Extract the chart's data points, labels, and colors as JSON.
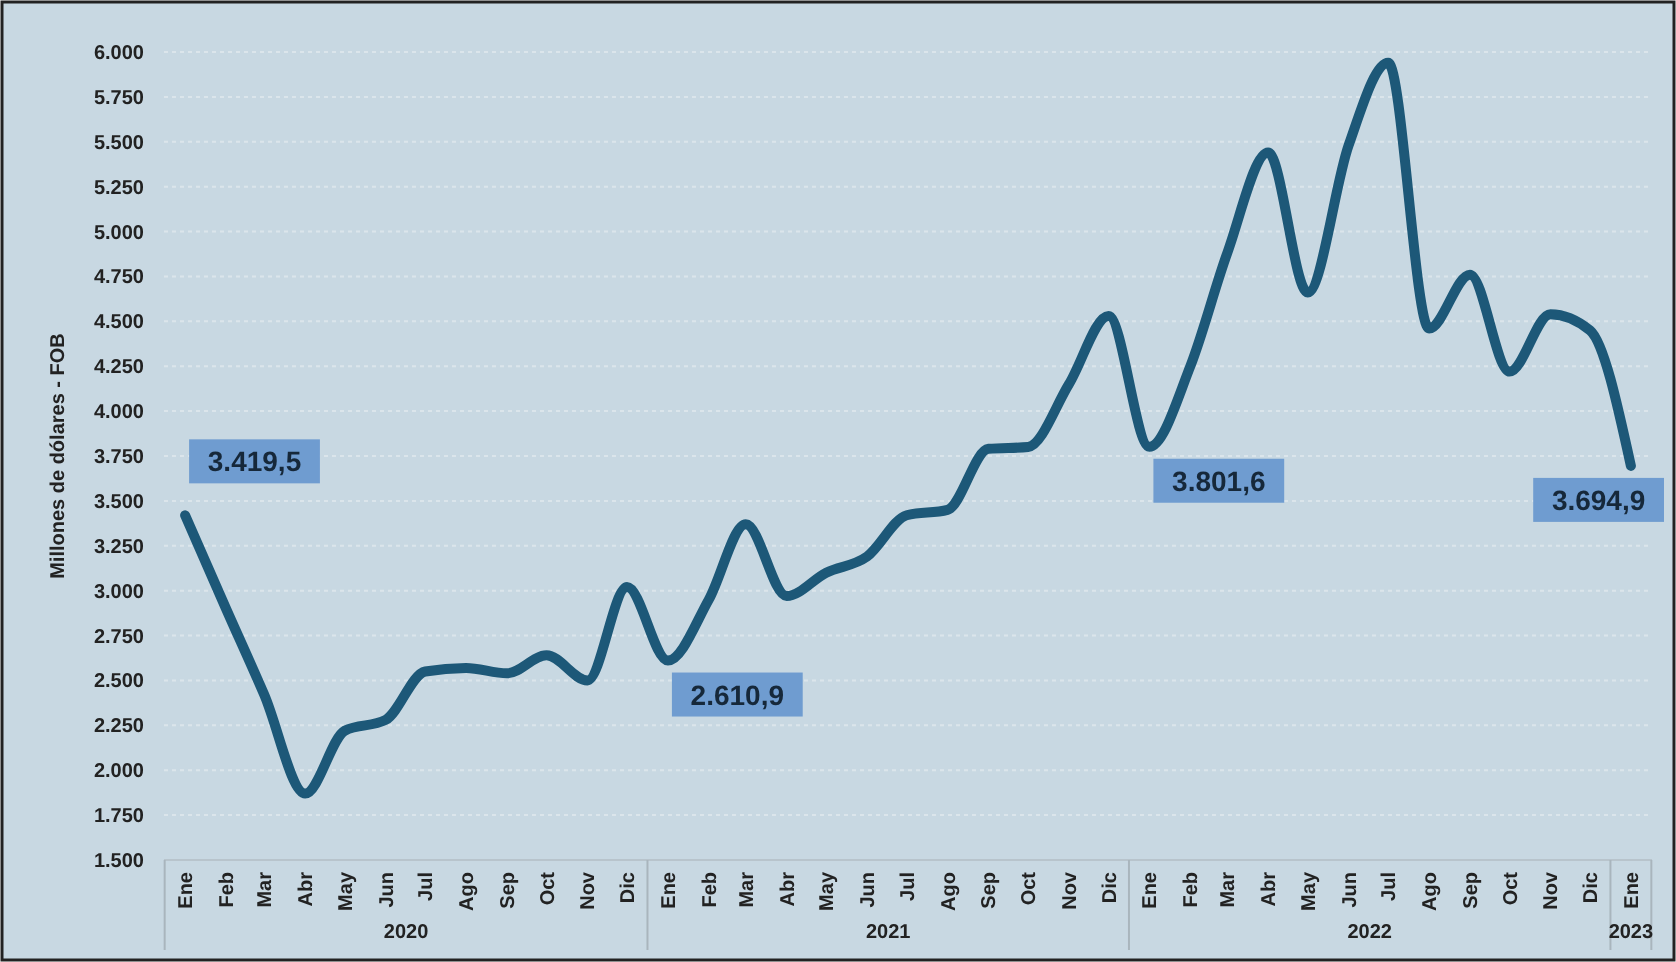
{
  "chart_data": {
    "type": "line",
    "ylabel": "Millones de dólares - FOB",
    "x": [
      "2020-01",
      "2020-02",
      "2020-03",
      "2020-04",
      "2020-05",
      "2020-06",
      "2020-07",
      "2020-08",
      "2020-09",
      "2020-10",
      "2020-11",
      "2020-12",
      "2021-01",
      "2021-02",
      "2021-03",
      "2021-04",
      "2021-05",
      "2021-06",
      "2021-07",
      "2021-08",
      "2021-09",
      "2021-10",
      "2021-11",
      "2021-12",
      "2022-01",
      "2022-02",
      "2022-03",
      "2022-04",
      "2022-05",
      "2022-06",
      "2022-07",
      "2022-08",
      "2022-09",
      "2022-10",
      "2022-11",
      "2022-12",
      "2023-01"
    ],
    "series": [
      {
        "color": "#1d5878",
        "values": [
          3419.5,
          2900,
          2420,
          1870,
          2220,
          2280,
          2550,
          2570,
          2540,
          2640,
          2500,
          3020,
          2610.9,
          2950,
          3370,
          2970,
          3100,
          3190,
          3420,
          3450,
          3790,
          3800,
          4150,
          4530,
          3801.6,
          4250,
          4880,
          5440,
          4660,
          5480,
          5940,
          4460,
          4760,
          4220,
          4540,
          4450,
          3694.9
        ],
        "value_labels": [
          "3.419,5",
          null,
          null,
          null,
          null,
          null,
          null,
          null,
          null,
          null,
          null,
          null,
          "2.610,9",
          null,
          null,
          null,
          null,
          null,
          null,
          null,
          null,
          null,
          null,
          null,
          "3.801,6",
          null,
          null,
          null,
          null,
          null,
          null,
          null,
          null,
          null,
          null,
          null,
          "3.694,9"
        ]
      }
    ],
    "xlim": [
      "2019-12-16",
      "2023-01-17"
    ],
    "xticks": [
      {
        "value": "2020-01",
        "label": "Ene"
      },
      {
        "value": "2020-02",
        "label": "Feb"
      },
      {
        "value": "2020-03",
        "label": "Mar"
      },
      {
        "value": "2020-04",
        "label": "Abr"
      },
      {
        "value": "2020-05",
        "label": "May"
      },
      {
        "value": "2020-06",
        "label": "Jun"
      },
      {
        "value": "2020-07",
        "label": "Jul"
      },
      {
        "value": "2020-08",
        "label": "Ago"
      },
      {
        "value": "2020-09",
        "label": "Sep"
      },
      {
        "value": "2020-10",
        "label": "Oct"
      },
      {
        "value": "2020-11",
        "label": "Nov"
      },
      {
        "value": "2020-12",
        "label": "Dic"
      },
      {
        "value": "2021-01",
        "label": "Ene"
      },
      {
        "value": "2021-02",
        "label": "Feb"
      },
      {
        "value": "2021-03",
        "label": "Mar"
      },
      {
        "value": "2021-04",
        "label": "Abr"
      },
      {
        "value": "2021-05",
        "label": "May"
      },
      {
        "value": "2021-06",
        "label": "Jun"
      },
      {
        "value": "2021-07",
        "label": "Jul"
      },
      {
        "value": "2021-08",
        "label": "Ago"
      },
      {
        "value": "2021-09",
        "label": "Sep"
      },
      {
        "value": "2021-10",
        "label": "Oct"
      },
      {
        "value": "2021-11",
        "label": "Nov"
      },
      {
        "value": "2021-12",
        "label": "Dic"
      },
      {
        "value": "2022-01",
        "label": "Ene"
      },
      {
        "value": "2022-02",
        "label": "Feb"
      },
      {
        "value": "2022-03",
        "label": "Mar"
      },
      {
        "value": "2022-04",
        "label": "Abr"
      },
      {
        "value": "2022-05",
        "label": "May"
      },
      {
        "value": "2022-06",
        "label": "Jun"
      },
      {
        "value": "2022-07",
        "label": "Jul"
      },
      {
        "value": "2022-08",
        "label": "Ago"
      },
      {
        "value": "2022-09",
        "label": "Sep"
      },
      {
        "value": "2022-10",
        "label": "Oct"
      },
      {
        "value": "2022-11",
        "label": "Nov"
      },
      {
        "value": "2022-12",
        "label": "Dic"
      },
      {
        "value": "2023-01",
        "label": "Ene"
      }
    ],
    "ylim": [
      1500,
      6000
    ],
    "yticks": [
      {
        "value": 1500,
        "label": "1.500"
      },
      {
        "value": 1750,
        "label": "1.750"
      },
      {
        "value": 2000,
        "label": "2.000"
      },
      {
        "value": 2250,
        "label": "2.250"
      },
      {
        "value": 2500,
        "label": "2.500"
      },
      {
        "value": 2750,
        "label": "2.750"
      },
      {
        "value": 3000,
        "label": "3.000"
      },
      {
        "value": 3250,
        "label": "3.250"
      },
      {
        "value": 3500,
        "label": "3.500"
      },
      {
        "value": 3750,
        "label": "3.750"
      },
      {
        "value": 4000,
        "label": "4.000"
      },
      {
        "value": 4250,
        "label": "4.250"
      },
      {
        "value": 4500,
        "label": "4.500"
      },
      {
        "value": 4750,
        "label": "4.750"
      },
      {
        "value": 5000,
        "label": "5.000"
      },
      {
        "value": 5250,
        "label": "5.250"
      },
      {
        "value": 5500,
        "label": "5.500"
      },
      {
        "value": 5750,
        "label": "5.750"
      },
      {
        "value": 6000,
        "label": "6.000"
      }
    ],
    "annotations": [
      "2020",
      "2021",
      "2022",
      "2023"
    ],
    "grid": "y",
    "marker": "none",
    "line_style": "solid"
  }
}
